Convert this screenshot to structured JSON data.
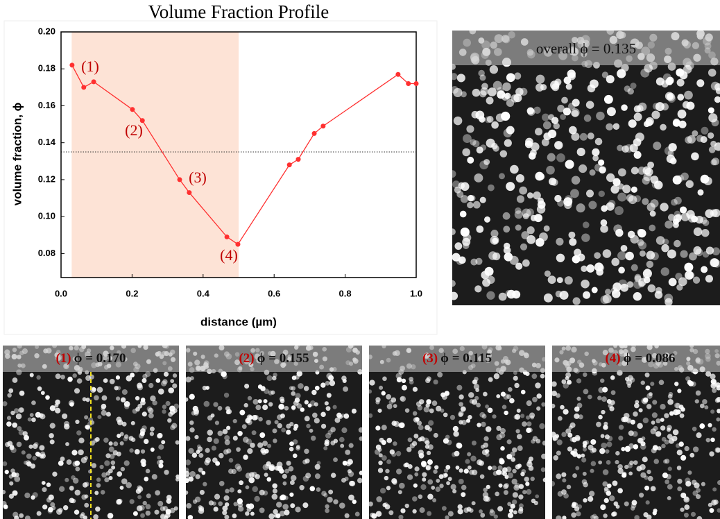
{
  "chart_data": {
    "type": "line",
    "title": "Volume Fraction Profile",
    "x_label": "distance (µm)",
    "y_label": "volume fraction, ϕ",
    "x": [
      0.031,
      0.064,
      0.092,
      0.201,
      0.229,
      0.334,
      0.361,
      0.467,
      0.498,
      0.643,
      0.668,
      0.713,
      0.738,
      0.949,
      0.978,
      1.0
    ],
    "series": [
      {
        "color": "#ff3030",
        "values": [
          0.182,
          0.17,
          0.173,
          0.158,
          0.152,
          0.12,
          0.113,
          0.089,
          0.085,
          0.128,
          0.131,
          0.145,
          0.149,
          0.177,
          0.172,
          0.172
        ]
      }
    ],
    "xlim": [
      0,
      1.0
    ],
    "ylim": [
      0.067,
      0.2
    ],
    "xticks": [
      {
        "value": 0,
        "label": "0.0"
      },
      0.2,
      0.4,
      0.6,
      0.8,
      {
        "value": 1.0,
        "label": "1.0"
      }
    ],
    "yticks": [
      0.08,
      {
        "value": 0.1,
        "label": "0.10"
      },
      0.12,
      0.14,
      0.16,
      0.18,
      {
        "value": 0.2,
        "label": "0.20"
      }
    ],
    "reference_line": 0.135,
    "shaded_range": [
      0.03,
      0.5
    ],
    "shade_color": "#fde3d6",
    "annotations": [
      "(1)",
      "(2)",
      "(3)",
      "(4)"
    ],
    "annotation_color": "#c00000"
  },
  "panels": {
    "overall": "overall ϕ = 0.135",
    "items": [
      {
        "label": "(1)",
        "caption": "ϕ = 0.170"
      },
      {
        "label": "(2)",
        "caption": "ϕ = 0.155"
      },
      {
        "label": "(3)",
        "caption": "ϕ = 0.115"
      },
      {
        "label": "(4)",
        "caption": "ϕ = 0.086"
      }
    ]
  }
}
